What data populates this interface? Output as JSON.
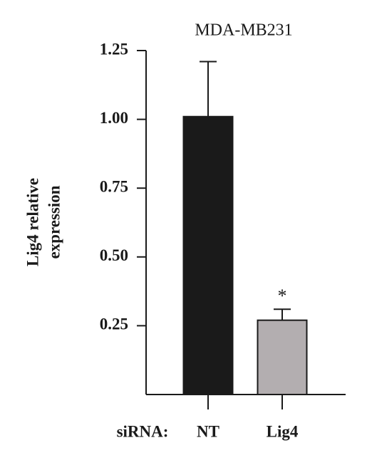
{
  "chart_data": {
    "type": "bar",
    "title": "MDA-MB231",
    "ylabel": [
      "Lig4 relative",
      "expression"
    ],
    "xlabel": "siRNA:",
    "categories": [
      "NT",
      "Lig4"
    ],
    "values": [
      1.01,
      0.27
    ],
    "errors": [
      0.2,
      0.04
    ],
    "colors": [
      "#1a1a1a",
      "#b3aeb0"
    ],
    "annotations": [
      {
        "text": "*",
        "x": "Lig4"
      }
    ],
    "ylim": [
      0,
      1.25
    ],
    "yticks": [
      0.25,
      {
        "value": 0.5,
        "label": "0.50"
      },
      0.75,
      {
        "value": 1,
        "label": "1.00"
      },
      1.25
    ],
    "grid": false
  }
}
